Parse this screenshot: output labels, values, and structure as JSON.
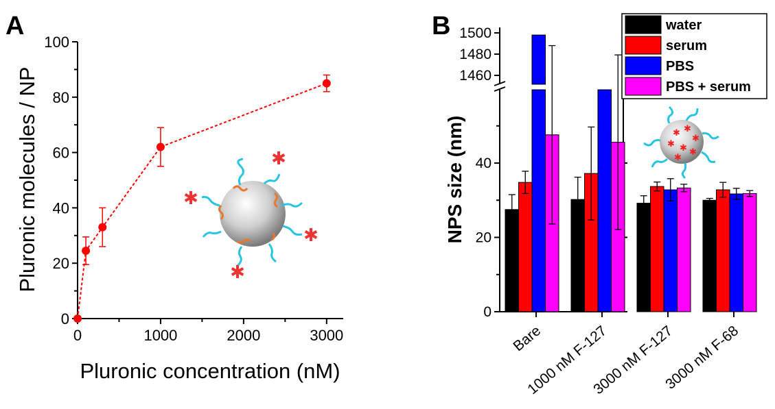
{
  "chart_data": [
    {
      "panel": "A",
      "type": "scatter",
      "xlabel": "Pluronic concentration (nM)",
      "ylabel": "Pluronic molecules / NP",
      "xlim": [
        0,
        3200
      ],
      "ylim": [
        0,
        100
      ],
      "xticks": [
        "0",
        "1000",
        "2000",
        "3000"
      ],
      "yticks": [
        "0",
        "20",
        "40",
        "60",
        "80",
        "100"
      ],
      "series": [
        {
          "x": [
            0,
            100,
            300,
            1000,
            3000
          ],
          "y": [
            0,
            24.5,
            33,
            62,
            85
          ],
          "yerr": [
            0,
            5,
            7,
            7,
            3
          ],
          "color": "#ff0000",
          "line": "dashed"
        }
      ],
      "grid": false
    },
    {
      "panel": "B",
      "type": "bar",
      "ylabel": "NPS size (nm)",
      "categories": [
        "Bare",
        "1000 nM F-127",
        "3000 nM F-127",
        "3000 nM F-68"
      ],
      "series": [
        {
          "name": "water",
          "color": "#000000",
          "values": [
            27.5,
            30.2,
            29.2,
            30.0
          ],
          "err": [
            4,
            6,
            2,
            0.5
          ]
        },
        {
          "name": "serum",
          "color": "#ff0000",
          "values": [
            34.8,
            37.2,
            33.7,
            32.8
          ],
          "err": [
            3,
            12.5,
            1.2,
            2
          ]
        },
        {
          "name": "PBS",
          "color": "#0000ff",
          "values": [
            1498,
            1450,
            32.8,
            31.7
          ],
          "err": [
            0,
            0,
            3,
            1.5
          ]
        },
        {
          "name": "PBS + serum",
          "color": "#ff00ff",
          "values": [
            47.6,
            45.6,
            33.3,
            31.8
          ],
          "err": [
            24,
            23.5,
            1,
            0.8
          ]
        }
      ],
      "ylim_lower": [
        0,
        60
      ],
      "ylim_upper": [
        1450,
        1500
      ],
      "yticks_lower": [
        "0",
        "20",
        "40"
      ],
      "yticks_upper": [
        "1460",
        "1480",
        "1500"
      ],
      "axis_break": true,
      "legend_position": "top-right",
      "grid": false
    }
  ]
}
